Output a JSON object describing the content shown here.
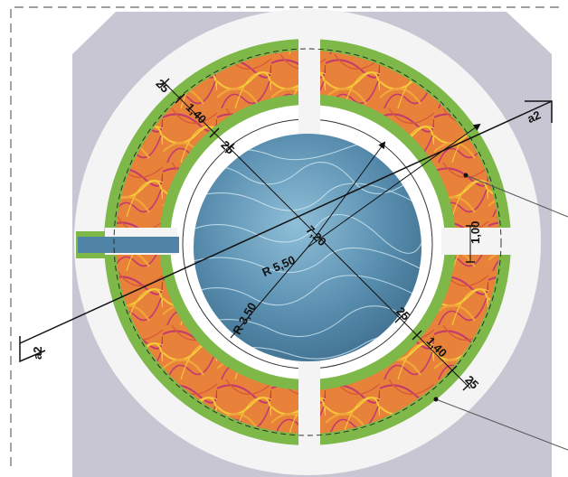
{
  "plan": {
    "section_label": "a2",
    "dimensions": {
      "outer_radius": "R 5,50",
      "inner_radius": "R 3,50",
      "centre_offset": "7,20",
      "path_width": "1,00",
      "bed_width_top": "1,40",
      "bed_width_bottom": "1,40",
      "edge_top_outer": "25",
      "edge_top_inner": "25",
      "edge_bottom_inner": "25",
      "edge_bottom_outer": "25"
    }
  },
  "colors": {
    "paving": "#c9c6d3",
    "lawn": "#f4f4f5",
    "hedge": "#7db849",
    "bed_base": "#e8823a",
    "bed_line": "#f0a63a",
    "bed_purple": "#c23a6e",
    "bed_yellow": "#f5c93a",
    "water": "#4f84a6"
  }
}
